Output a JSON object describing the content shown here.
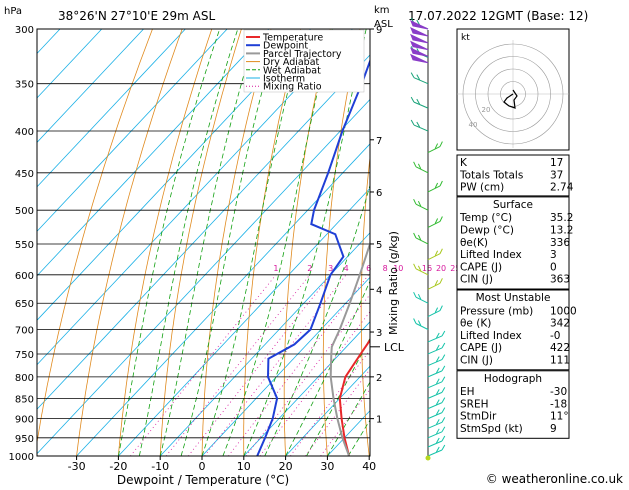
{
  "header": {
    "location": "38°26'N  27°10'E  29m  ASL",
    "date": "17.07.2022  12GMT  (Base: 12)",
    "hpa_unit": "hPa",
    "km_unit": "km",
    "asl_unit": "ASL"
  },
  "footer": {
    "credit": "© weatheronline.co.uk"
  },
  "colors": {
    "temperature": "#e8282a",
    "dewpoint": "#1f3fd6",
    "parcel": "#999999",
    "dry_adiabat": "#e08a1e",
    "wet_adiabat": "#11a011",
    "isotherm": "#1ab0e6",
    "mixing_ratio": "#d6169c",
    "wind": "#15c3a8"
  },
  "legend": [
    "Temperature",
    "Dewpoint",
    "Parcel Trajectory",
    "Dry Adiabat",
    "Wet Adiabat",
    "Isotherm",
    "Mixing Ratio"
  ],
  "chart_data": {
    "type": "line",
    "title": "",
    "xlabel": "Dewpoint / Temperature (°C)",
    "ylabel": "hPa",
    "right_axis_label": "Mixing Ratio (g/kg)",
    "xlim": [
      -35,
      40
    ],
    "ylim": [
      1000,
      300
    ],
    "x_ticks": [
      -30,
      -20,
      -10,
      0,
      10,
      20,
      30,
      40
    ],
    "y_ticks": [
      300,
      350,
      400,
      450,
      500,
      550,
      600,
      650,
      700,
      750,
      800,
      850,
      900,
      950,
      1000
    ],
    "km_ticks": [
      {
        "p": 300,
        "km": "9"
      },
      {
        "p": 410,
        "km": "7"
      },
      {
        "p": 475,
        "km": "6"
      },
      {
        "p": 550,
        "km": "5"
      },
      {
        "p": 625,
        "km": "4"
      },
      {
        "p": 705,
        "km": "3"
      },
      {
        "p": 800,
        "km": "2"
      },
      {
        "p": 900,
        "km": "1"
      }
    ],
    "lcl": {
      "label": "LCL",
      "pressure": 735
    },
    "mixing_ratio_labels": [
      "1",
      "2",
      "3",
      "4",
      "6",
      "8",
      "10",
      "16",
      "20",
      "25"
    ],
    "mixing_ratio_values": [
      1,
      2,
      3,
      4,
      6,
      8,
      10,
      16,
      20,
      25
    ],
    "series": [
      {
        "name": "Temperature",
        "points": [
          [
            1000,
            35.2
          ],
          [
            950,
            30
          ],
          [
            900,
            25
          ],
          [
            850,
            20
          ],
          [
            800,
            16.5
          ],
          [
            750,
            15
          ],
          [
            700,
            13.5
          ],
          [
            650,
            9.5
          ],
          [
            600,
            5.5
          ],
          [
            550,
            1
          ],
          [
            500,
            -4
          ],
          [
            450,
            -9.5
          ],
          [
            400,
            -16
          ],
          [
            350,
            -23.5
          ],
          [
            300,
            -31.5
          ]
        ]
      },
      {
        "name": "Dewpoint",
        "points": [
          [
            1000,
            13.2
          ],
          [
            950,
            11
          ],
          [
            900,
            8.5
          ],
          [
            850,
            5
          ],
          [
            800,
            -2
          ],
          [
            760,
            -6
          ],
          [
            730,
            -3
          ],
          [
            700,
            -2.5
          ],
          [
            650,
            -6
          ],
          [
            600,
            -10
          ],
          [
            570,
            -11
          ],
          [
            535,
            -18
          ],
          [
            520,
            -26
          ],
          [
            500,
            -28.5
          ],
          [
            450,
            -33.5
          ],
          [
            400,
            -39.5
          ],
          [
            350,
            -45.5
          ],
          [
            300,
            -53
          ]
        ]
      },
      {
        "name": "Parcel Trajectory",
        "points": [
          [
            1000,
            35.2
          ],
          [
            950,
            29.5
          ],
          [
            900,
            24
          ],
          [
            850,
            18.5
          ],
          [
            800,
            13
          ],
          [
            750,
            8
          ],
          [
            735,
            6.5
          ],
          [
            700,
            4.5
          ],
          [
            650,
            1
          ],
          [
            600,
            -3
          ],
          [
            550,
            -7.5
          ],
          [
            500,
            -12.5
          ],
          [
            450,
            -18.5
          ],
          [
            400,
            -25.5
          ],
          [
            350,
            -33.5
          ],
          [
            300,
            -43
          ]
        ]
      }
    ]
  },
  "hodograph": {
    "unit": "kt",
    "rings": [
      10,
      20,
      30,
      40
    ],
    "ring_labels": [
      "20",
      "40"
    ]
  },
  "indices": [
    {
      "label": "K",
      "value": "17"
    },
    {
      "label": "Totals Totals",
      "value": "37"
    },
    {
      "label": "PW (cm)",
      "value": "2.74"
    }
  ],
  "surface": {
    "title": "Surface",
    "rows": [
      {
        "label": "Temp (°C)",
        "value": "35.2"
      },
      {
        "label": "Dewp (°C)",
        "value": "13.2"
      },
      {
        "label": "θe(K)",
        "value": "336"
      },
      {
        "label": "Lifted Index",
        "value": "3"
      },
      {
        "label": "CAPE (J)",
        "value": "0"
      },
      {
        "label": "CIN (J)",
        "value": "363"
      }
    ]
  },
  "most_unstable": {
    "title": "Most Unstable",
    "rows": [
      {
        "label": "Pressure (mb)",
        "value": "1000"
      },
      {
        "label": "θe (K)",
        "value": "342"
      },
      {
        "label": "Lifted Index",
        "value": "-0"
      },
      {
        "label": "CAPE (J)",
        "value": "422"
      },
      {
        "label": "CIN (J)",
        "value": "111"
      }
    ]
  },
  "hodograph_table": {
    "title": "Hodograph",
    "rows": [
      {
        "label": "EH",
        "value": "-30"
      },
      {
        "label": "SREH",
        "value": "-18"
      },
      {
        "label": "StmDir",
        "value": "11°"
      },
      {
        "label": "StmSpd (kt)",
        "value": "9"
      }
    ]
  }
}
